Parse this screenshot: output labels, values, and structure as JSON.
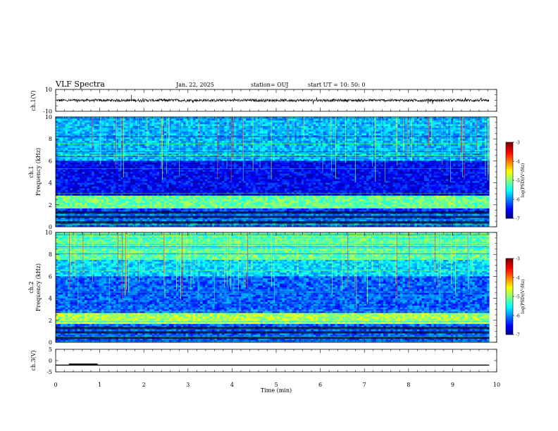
{
  "header": {
    "title": "VLF Spectra",
    "date": "Jan. 22, 2025",
    "station": "station= OUJ",
    "start": "start UT =   10: 50: 0"
  },
  "chart_data": [
    {
      "type": "line",
      "name": "ch1-waveform",
      "ylabel": "ch.1(V)",
      "ylim": [
        -10,
        10
      ],
      "y_ticks": [
        "10",
        "-10"
      ],
      "x_range": [
        0,
        10
      ],
      "data_extent": [
        0,
        9.83
      ],
      "level": 0,
      "amplitude_approx": 1.2
    },
    {
      "type": "heatmap",
      "name": "ch1-spectrogram",
      "ylabel": "ch.1\nFrequency (kHz)",
      "ylim": [
        0,
        10
      ],
      "y_ticks": [
        "0",
        "2",
        "4",
        "6",
        "8",
        "10"
      ],
      "x_range": [
        0,
        10
      ],
      "data_extent": [
        0,
        9.83
      ],
      "colorbar": {
        "label": "log(PSD)(V²/Hz)",
        "ticks": [
          "-3",
          "-4",
          "-5",
          "-6",
          "-7"
        ],
        "range": [
          -7,
          -3
        ]
      }
    },
    {
      "type": "heatmap",
      "name": "ch2-spectrogram",
      "ylabel": "ch.2\nFrequency (kHz)",
      "ylim": [
        0,
        10
      ],
      "y_ticks": [
        "0",
        "2",
        "4",
        "6",
        "8",
        "10"
      ],
      "x_range": [
        0,
        10
      ],
      "data_extent": [
        0,
        9.83
      ],
      "colorbar": {
        "label": "log(PSD)(V²/Hz)",
        "ticks": [
          "-3",
          "-4",
          "-5",
          "-6",
          "-7"
        ],
        "range": [
          -7,
          -3
        ]
      }
    },
    {
      "type": "line",
      "name": "ch3-level",
      "ylabel": "ch.3(V)",
      "ylim": [
        -5,
        5
      ],
      "y_ticks": [
        "5",
        "0",
        "-5"
      ],
      "x_range": [
        0,
        10
      ],
      "level": -2,
      "segments": [
        {
          "x0": 0.3,
          "x1": 0.95,
          "emphasis": true
        },
        {
          "x0": 0,
          "x1": 9.83
        }
      ]
    }
  ],
  "x_axis": {
    "xlabel": "Time (min)",
    "ticks": [
      "0",
      "1",
      "2",
      "3",
      "4",
      "5",
      "6",
      "7",
      "8",
      "9",
      "10"
    ]
  }
}
